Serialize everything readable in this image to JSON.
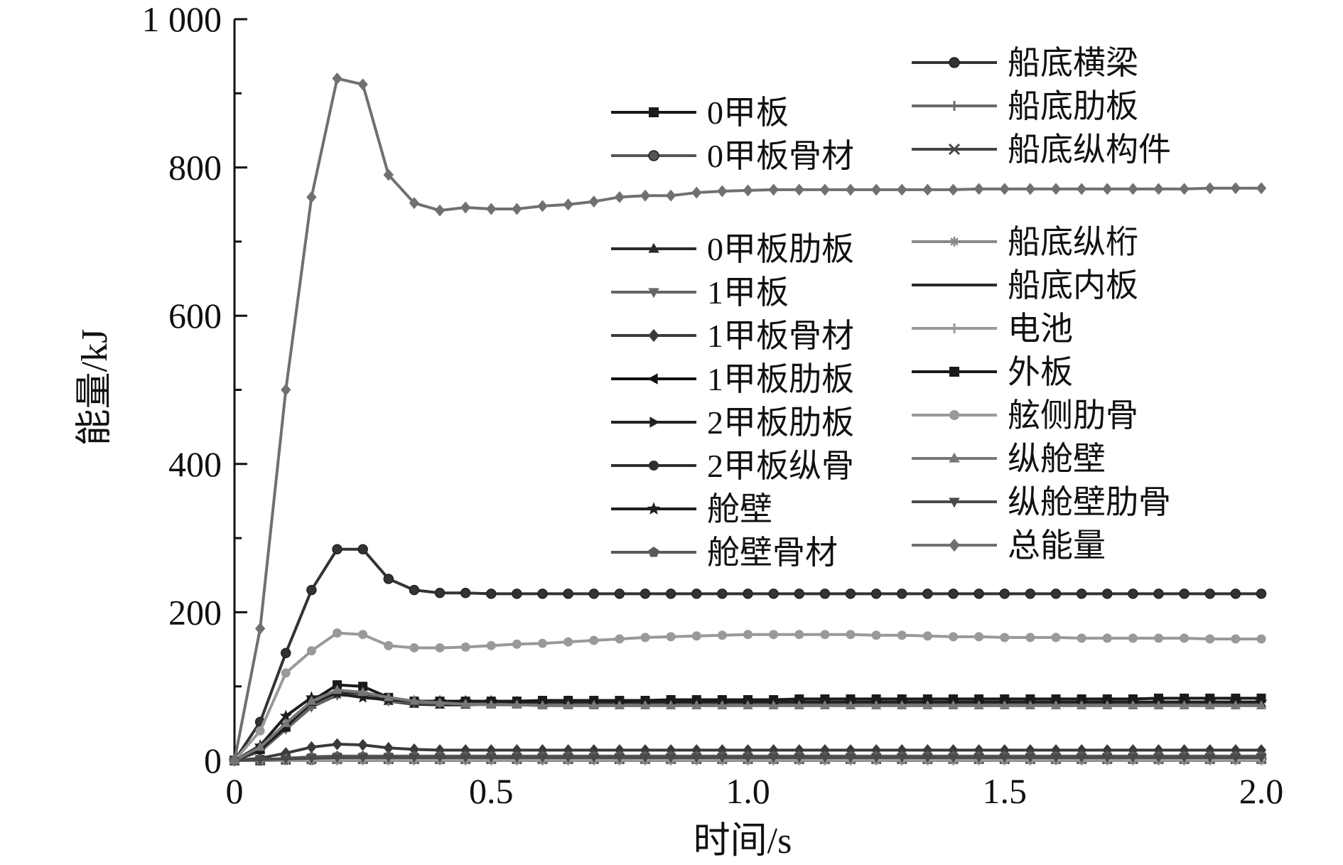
{
  "chart_data": {
    "type": "line",
    "xlabel": "时间/s",
    "ylabel": "能量/kJ",
    "xlim": [
      0,
      2.0
    ],
    "ylim": [
      0,
      1000
    ],
    "xticks": [
      "0",
      "0.5",
      "1.0",
      "1.5",
      "2.0"
    ],
    "yticks": [
      "0",
      "200",
      "400",
      "600",
      "800",
      "1 000"
    ],
    "x": [
      0,
      0.05,
      0.1,
      0.15,
      0.2,
      0.25,
      0.3,
      0.35,
      0.4,
      0.45,
      0.5,
      0.55,
      0.6,
      0.65,
      0.7,
      0.75,
      0.8,
      0.85,
      0.9,
      0.95,
      1.0,
      1.05,
      1.1,
      1.15,
      1.2,
      1.25,
      1.3,
      1.35,
      1.4,
      1.45,
      1.5,
      1.55,
      1.6,
      1.65,
      1.7,
      1.75,
      1.8,
      1.85,
      1.9,
      1.95,
      2.0
    ],
    "series": [
      {
        "name": "0甲板",
        "color": "#1a1a1a",
        "marker": "square",
        "values": [
          0,
          1,
          2,
          3,
          4,
          4,
          4,
          4,
          4,
          4,
          4,
          4,
          4,
          4,
          4,
          4,
          4,
          4,
          4,
          4,
          4,
          4,
          4,
          4,
          4,
          4,
          4,
          4,
          4,
          4,
          4,
          4,
          4,
          4,
          4,
          4,
          4,
          4,
          4,
          4,
          4
        ]
      },
      {
        "name": "0甲板骨材",
        "color": "#555555",
        "marker": "circle",
        "values": [
          0,
          0,
          1,
          1,
          2,
          2,
          2,
          2,
          2,
          2,
          2,
          2,
          2,
          2,
          2,
          2,
          2,
          2,
          2,
          2,
          2,
          2,
          2,
          2,
          2,
          2,
          2,
          2,
          2,
          2,
          2,
          2,
          2,
          2,
          2,
          2,
          2,
          2,
          2,
          2,
          2
        ]
      },
      {
        "name": "0甲板肋板",
        "color": "#2a2a2a",
        "marker": "triangle-up",
        "values": [
          0,
          15,
          45,
          75,
          92,
          90,
          80,
          76,
          75,
          75,
          76,
          76,
          76,
          76,
          76,
          77,
          77,
          77,
          77,
          77,
          77,
          77,
          77,
          77,
          77,
          77,
          77,
          77,
          77,
          77,
          77,
          77,
          77,
          77,
          77,
          77,
          77,
          77,
          77,
          77,
          77
        ]
      },
      {
        "name": "1甲板",
        "color": "#666666",
        "marker": "triangle-down",
        "values": [
          0,
          12,
          42,
          72,
          88,
          88,
          80,
          78,
          77,
          77,
          77,
          77,
          77,
          77,
          77,
          77,
          77,
          77,
          77,
          77,
          77,
          77,
          77,
          77,
          77,
          77,
          77,
          77,
          77,
          77,
          77,
          77,
          77,
          77,
          77,
          77,
          77,
          77,
          77,
          77,
          77
        ]
      },
      {
        "name": "1甲板骨材",
        "color": "#3a3a3a",
        "marker": "diamond",
        "values": [
          0,
          3,
          10,
          18,
          22,
          21,
          17,
          15,
          14,
          14,
          14,
          14,
          14,
          14,
          14,
          14,
          14,
          14,
          14,
          14,
          14,
          14,
          14,
          14,
          14,
          14,
          14,
          14,
          14,
          14,
          14,
          14,
          14,
          14,
          14,
          14,
          14,
          14,
          14,
          14,
          14
        ]
      },
      {
        "name": "1甲板肋板",
        "color": "#111111",
        "marker": "triangle-left",
        "values": [
          0,
          1,
          2,
          3,
          4,
          4,
          4,
          4,
          4,
          4,
          4,
          4,
          4,
          4,
          4,
          4,
          4,
          4,
          4,
          4,
          4,
          4,
          4,
          4,
          4,
          4,
          4,
          4,
          4,
          4,
          4,
          4,
          4,
          4,
          4,
          4,
          4,
          4,
          4,
          4,
          4
        ]
      },
      {
        "name": "2甲板肋板",
        "color": "#222222",
        "marker": "triangle-right",
        "values": [
          0,
          0,
          1,
          2,
          3,
          3,
          3,
          3,
          3,
          3,
          3,
          3,
          3,
          3,
          3,
          3,
          3,
          3,
          3,
          3,
          3,
          3,
          3,
          3,
          3,
          3,
          3,
          3,
          3,
          3,
          3,
          3,
          3,
          3,
          3,
          3,
          3,
          3,
          3,
          3,
          3
        ]
      },
      {
        "name": "2甲板纵骨",
        "color": "#2e2e2e",
        "marker": "circle-filled",
        "values": [
          0,
          1,
          2,
          3,
          3,
          3,
          3,
          3,
          3,
          3,
          3,
          3,
          3,
          3,
          3,
          3,
          3,
          3,
          3,
          3,
          3,
          3,
          3,
          3,
          3,
          3,
          3,
          3,
          3,
          3,
          3,
          3,
          3,
          3,
          3,
          3,
          3,
          3,
          3,
          3,
          3
        ]
      },
      {
        "name": "舱壁",
        "color": "#1e1e1e",
        "marker": "star",
        "values": [
          0,
          20,
          60,
          85,
          90,
          85,
          82,
          80,
          80,
          80,
          80,
          79,
          79,
          79,
          79,
          79,
          79,
          79,
          79,
          79,
          79,
          79,
          79,
          79,
          79,
          79,
          79,
          79,
          79,
          79,
          79,
          79,
          79,
          79,
          79,
          79,
          79,
          79,
          79,
          79,
          79
        ]
      },
      {
        "name": "舱壁骨材",
        "color": "#5a5a5a",
        "marker": "pentagon",
        "values": [
          0,
          1,
          3,
          5,
          6,
          6,
          6,
          6,
          6,
          6,
          6,
          6,
          6,
          6,
          6,
          6,
          6,
          6,
          6,
          6,
          6,
          6,
          6,
          6,
          6,
          6,
          6,
          6,
          6,
          6,
          6,
          6,
          6,
          6,
          6,
          6,
          6,
          6,
          6,
          6,
          6
        ]
      },
      {
        "name": "船底横梁",
        "color": "#333333",
        "marker": "circle",
        "values": [
          0,
          52,
          145,
          230,
          285,
          285,
          245,
          230,
          226,
          226,
          225,
          225,
          225,
          225,
          225,
          225,
          225,
          225,
          225,
          225,
          225,
          225,
          225,
          225,
          225,
          225,
          225,
          225,
          225,
          225,
          225,
          225,
          225,
          225,
          225,
          225,
          225,
          225,
          225,
          225,
          225
        ]
      },
      {
        "name": "船底肋板",
        "color": "#6a6a6a",
        "marker": "plus",
        "values": [
          0,
          1,
          2,
          3,
          4,
          4,
          4,
          4,
          4,
          4,
          4,
          4,
          4,
          4,
          4,
          4,
          4,
          4,
          4,
          4,
          4,
          4,
          4,
          4,
          4,
          4,
          4,
          4,
          4,
          4,
          4,
          4,
          4,
          4,
          4,
          4,
          4,
          4,
          4,
          4,
          4
        ]
      },
      {
        "name": "船底纵构件",
        "color": "#444444",
        "marker": "x",
        "values": [
          0,
          0,
          1,
          2,
          2,
          2,
          2,
          2,
          2,
          2,
          2,
          2,
          2,
          2,
          2,
          2,
          2,
          2,
          2,
          2,
          2,
          2,
          2,
          2,
          2,
          2,
          2,
          2,
          2,
          2,
          2,
          2,
          2,
          2,
          2,
          2,
          2,
          2,
          2,
          2,
          2
        ]
      },
      {
        "name": "船底纵桁",
        "color": "#8a8a8a",
        "marker": "asterisk",
        "values": [
          0,
          0,
          0,
          0,
          0,
          0,
          0,
          0,
          0,
          0,
          0,
          0,
          0,
          0,
          0,
          0,
          0,
          0,
          0,
          0,
          0,
          0,
          0,
          0,
          0,
          0,
          0,
          0,
          0,
          0,
          0,
          0,
          0,
          0,
          0,
          0,
          0,
          0,
          0,
          0,
          0
        ]
      },
      {
        "name": "船底内板",
        "color": "#2b2b2b",
        "marker": "none",
        "values": [
          0,
          0,
          1,
          1,
          1,
          1,
          1,
          1,
          1,
          1,
          1,
          1,
          1,
          1,
          1,
          1,
          1,
          1,
          1,
          1,
          1,
          1,
          1,
          1,
          1,
          1,
          1,
          1,
          1,
          1,
          1,
          1,
          1,
          1,
          1,
          1,
          1,
          1,
          1,
          1,
          1
        ]
      },
      {
        "name": "电池",
        "color": "#9a9a9a",
        "marker": "plus",
        "values": [
          0,
          0,
          0,
          1,
          1,
          1,
          1,
          1,
          1,
          1,
          1,
          1,
          1,
          1,
          1,
          1,
          1,
          1,
          1,
          1,
          1,
          1,
          1,
          1,
          1,
          1,
          1,
          1,
          1,
          1,
          1,
          1,
          1,
          1,
          1,
          1,
          1,
          1,
          1,
          1,
          1
        ]
      },
      {
        "name": "外板",
        "color": "#1a1a1a",
        "marker": "square",
        "values": [
          0,
          15,
          45,
          80,
          102,
          100,
          85,
          80,
          80,
          80,
          80,
          80,
          81,
          81,
          81,
          81,
          81,
          82,
          82,
          82,
          82,
          82,
          83,
          83,
          83,
          83,
          83,
          83,
          83,
          83,
          83,
          83,
          83,
          83,
          83,
          83,
          84,
          84,
          84,
          84,
          84
        ]
      },
      {
        "name": "舷侧肋骨",
        "color": "#999999",
        "marker": "circle-filled",
        "values": [
          0,
          40,
          118,
          148,
          172,
          170,
          155,
          152,
          152,
          153,
          155,
          157,
          158,
          160,
          162,
          164,
          166,
          167,
          168,
          169,
          170,
          170,
          170,
          170,
          170,
          169,
          169,
          168,
          167,
          167,
          166,
          166,
          166,
          165,
          165,
          165,
          165,
          165,
          164,
          164,
          164
        ]
      },
      {
        "name": "纵舱壁",
        "color": "#777777",
        "marker": "triangle-up",
        "values": [
          0,
          18,
          50,
          80,
          95,
          92,
          85,
          80,
          78,
          76,
          75,
          75,
          74,
          74,
          74,
          74,
          74,
          74,
          74,
          74,
          74,
          74,
          74,
          74,
          74,
          74,
          74,
          74,
          74,
          74,
          74,
          74,
          74,
          74,
          74,
          74,
          74,
          74,
          74,
          74,
          74
        ]
      },
      {
        "name": "纵舱壁肋骨",
        "color": "#4a4a4a",
        "marker": "triangle-down",
        "values": [
          0,
          1,
          2,
          3,
          4,
          4,
          4,
          4,
          4,
          4,
          4,
          4,
          4,
          4,
          4,
          4,
          4,
          4,
          4,
          4,
          4,
          4,
          4,
          4,
          4,
          4,
          4,
          4,
          4,
          4,
          4,
          4,
          4,
          4,
          4,
          4,
          4,
          4,
          4,
          4,
          4
        ]
      },
      {
        "name": "总能量",
        "color": "#707070",
        "marker": "diamond",
        "values": [
          0,
          178,
          500,
          760,
          920,
          912,
          790,
          752,
          742,
          746,
          744,
          744,
          748,
          750,
          754,
          760,
          762,
          762,
          766,
          768,
          769,
          770,
          770,
          770,
          770,
          770,
          770,
          770,
          770,
          771,
          771,
          771,
          771,
          771,
          771,
          771,
          771,
          771,
          772,
          772,
          772
        ]
      }
    ]
  }
}
